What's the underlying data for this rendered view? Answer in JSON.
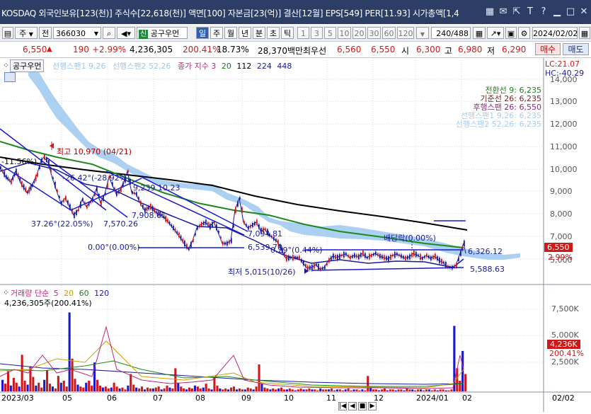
{
  "title_bar": {
    "text": "KOSDAQ 외국인보유[123(천)] 주식수[22,618(천)] 액면[100] 자본금[23(억)] 결산[12월] EPS[549] PER[11.93] 시가총액[1,4",
    "icons": [
      "grid-icon",
      "email-icon",
      "export-icon",
      "font-size-icon",
      "question-icon",
      "minimize-icon",
      "maximize-icon",
      "close-icon"
    ]
  },
  "toolbar": {
    "type1": "주",
    "type2": "전",
    "code": "366030",
    "stock_name": "공구우먼",
    "periods": [
      "일",
      "주",
      "월",
      "년",
      "분",
      "초",
      "틱"
    ],
    "active_period": "일",
    "minutes": [
      "1",
      "3",
      "5",
      "10",
      "20",
      "30",
      "60",
      "120"
    ],
    "count": "240",
    "total": "/488",
    "date": "2024/02/02"
  },
  "quote": {
    "price": "6,550",
    "arrow": "▲",
    "change": "190",
    "rate": "+2.99%",
    "volume": "4,236,305",
    "vol_ratio": "200.41%",
    "turnover": "18.73%",
    "amount": "28,370백만",
    "prev_label": "최우선",
    "ask": "6,560",
    "bid": "6,550",
    "open_label": "시",
    "open": "6,300",
    "high_label": "고",
    "high": "6,980",
    "low_label": "저",
    "low": "6,290",
    "buy": "매수",
    "sell": "매도"
  },
  "price_panel": {
    "name_tag": "공구우먼",
    "legend": [
      {
        "text": "선행스팬1 9,26",
        "color": "#9cc8ee"
      },
      {
        "text": "선행스팬2 52,26",
        "color": "#9cc8ee"
      },
      {
        "text": "종가 지수 3",
        "color": "#c0277a"
      },
      {
        "text": "20",
        "color": "#1f7a1f"
      },
      {
        "text": "112",
        "color": "#000000"
      },
      {
        "text": "224",
        "color": "#1a1aa0"
      },
      {
        "text": "448",
        "color": "#1a1aa0"
      }
    ],
    "lc": "LC:21.07",
    "hc": "HC:-40.29",
    "ichimoku_labels": [
      {
        "text": "전환선 9: 6,235",
        "color": "#1f7a1f"
      },
      {
        "text": "기준선 26: 6,235",
        "color": "#7a1f1f"
      },
      {
        "text": "후행스팬 26: 6,550",
        "color": "#8a2b7a"
      },
      {
        "text": "선행스팬1 9,26: 6,235",
        "color": "#aaccee"
      },
      {
        "text": "선행스팬2 52,26: 6,235",
        "color": "#aaccee"
      }
    ],
    "price_axis": [
      "14,000",
      "13,000",
      "12,000",
      "11,000",
      "10,000",
      "9,000",
      "8,000",
      "7,000",
      "5,000"
    ],
    "price_tag": "6,550",
    "rate_tag": "2.99%",
    "annotations": [
      {
        "text": "최고 10,970 (04/21)",
        "color": "#b00000"
      },
      {
        "text": "-11.56%)",
        "color": "#000"
      },
      {
        "text": "-26.42°(-28.92%)",
        "color": "#1a1aa0"
      },
      {
        "text": "9,239 10,23",
        "color": "#1a1aa0"
      },
      {
        "text": "37.26°(22.05%)",
        "color": "#1a1aa0"
      },
      {
        "text": "7,570.26",
        "color": "#1a1aa0"
      },
      {
        "text": "7,908.61",
        "color": "#1a1aa0"
      },
      {
        "text": "0.00°(0.00%)",
        "color": "#1a1aa0"
      },
      {
        "text": "6,539.70",
        "color": "#1a1aa0"
      },
      {
        "text": "7,094.81",
        "color": "#1a1aa0"
      },
      {
        "text": "0.29°(0.44%)",
        "color": "#1a1aa0"
      },
      {
        "text": "배당락(0.00%)",
        "color": "#1a1aa0"
      },
      {
        "text": "6,326.12",
        "color": "#1a1aa0"
      },
      {
        "text": "최저 5,015(10/26)",
        "color": "#1a1aa0"
      },
      {
        "text": "5,588.63",
        "color": "#1a1aa0"
      }
    ]
  },
  "volume_panel": {
    "title": "거래량 단순",
    "ma": [
      {
        "text": "5",
        "color": "#c0277a"
      },
      {
        "text": "20",
        "color": "#c8a000"
      },
      {
        "text": "60",
        "color": "#1f7a1f"
      },
      {
        "text": "120",
        "color": "#1a1aa0"
      }
    ],
    "value": "4,236,305주(200.41%)",
    "axis": [
      "7,500K",
      "5,000K",
      "2,500K"
    ],
    "tag": "4,236K",
    "tag_rate": "200.41%",
    "series": [
      1.2,
      0.8,
      2.1,
      0.6,
      1.4,
      0.9,
      0.5,
      3.8,
      1.1,
      0.7,
      2.6,
      1.5,
      0.6,
      0.9,
      0.4,
      1.2,
      2.2,
      0.8,
      0.5,
      0.3,
      1.6,
      0.9,
      1.1,
      0.5,
      8.2,
      3.4,
      1.3,
      0.7,
      0.5,
      0.4,
      0.9,
      1.1,
      0.6,
      3.0,
      1.2,
      0.6,
      0.4,
      0.5,
      0.3,
      0.4,
      0.9,
      0.5,
      0.3,
      0.4,
      0.2,
      0.6,
      1.8,
      0.7,
      0.4,
      0.3,
      0.5,
      0.2,
      0.4,
      0.3,
      0.3,
      0.4,
      0.5,
      0.2,
      0.3,
      0.6,
      0.4,
      0.3,
      2.4,
      0.9,
      0.5,
      0.3,
      0.2,
      0.4,
      0.3,
      0.6,
      0.5,
      0.3,
      0.4,
      0.8,
      0.3,
      0.2,
      1.4,
      0.6,
      0.3,
      0.2,
      0.3,
      0.2,
      0.4,
      0.5,
      0.2,
      0.3,
      0.2,
      0.2,
      0.4,
      0.3,
      0.2,
      0.5,
      2.8,
      0.8,
      0.4,
      0.3,
      0.2,
      0.3,
      0.2,
      0.3,
      0.4,
      0.2,
      0.2,
      0.3,
      0.2,
      0.1,
      0.2,
      0.3,
      0.2,
      0.2,
      0.3,
      0.2,
      0.2,
      0.1,
      0.3,
      0.2,
      0.2,
      0.2,
      0.3,
      0.1,
      0.2,
      0.2,
      0.1,
      0.2,
      0.3,
      0.1,
      0.2,
      0.2,
      0.1,
      0.2,
      0.1,
      1.6,
      0.4,
      0.2,
      0.2,
      0.1,
      0.2,
      0.3,
      0.1,
      0.2,
      0.2,
      0.1,
      0.2,
      0.2,
      0.1,
      0.3,
      0.2,
      0.2,
      0.1,
      0.2,
      0.2,
      0.1,
      0.2,
      0.2,
      0.1,
      0.2,
      0.1,
      0.2,
      0.2,
      0.1,
      0.1,
      0.2,
      6.8,
      2.4,
      1.1,
      4.2,
      1.8
    ]
  },
  "x_axis": [
    "2023/03",
    "05",
    "06",
    "07",
    "08",
    "09",
    "10",
    "11",
    "12",
    "2024/01",
    "02"
  ],
  "x_axis_right": "02/02"
}
